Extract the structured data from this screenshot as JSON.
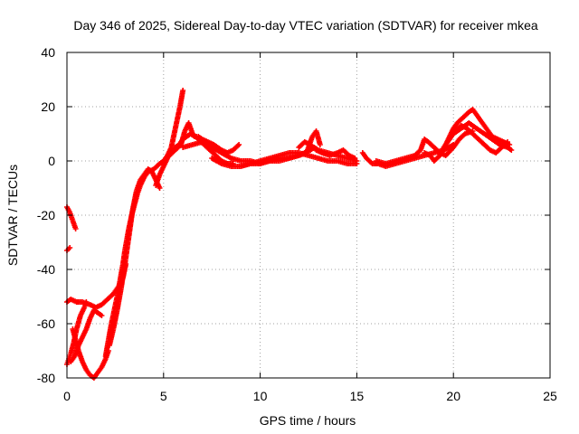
{
  "chart_data": {
    "type": "scatter",
    "title": "Day 346 of 2025, Sidereal Day-to-day VTEC variation (SDTVAR) for receiver mkea",
    "xlabel": "GPS time / hours",
    "ylabel": "SDTVAR / TECUs",
    "xlim": [
      0,
      25
    ],
    "ylim": [
      -80,
      40
    ],
    "xticks": [
      0,
      5,
      10,
      15,
      20,
      25
    ],
    "yticks": [
      -80,
      -60,
      -40,
      -20,
      0,
      20,
      40
    ],
    "grid": true,
    "legend": "none",
    "marker": "+",
    "color": "#ff0000",
    "series": [
      {
        "name": "trace-1",
        "points": [
          [
            0.0,
            -17
          ],
          [
            0.15,
            -19
          ],
          [
            0.3,
            -22
          ],
          [
            0.45,
            -25
          ]
        ]
      },
      {
        "name": "trace-2",
        "points": [
          [
            0.0,
            -33
          ],
          [
            0.15,
            -32
          ]
        ]
      },
      {
        "name": "trace-3",
        "points": [
          [
            0.0,
            -52
          ],
          [
            0.2,
            -51
          ],
          [
            0.5,
            -52
          ],
          [
            0.8,
            -52
          ],
          [
            1.2,
            -53
          ],
          [
            1.5,
            -54
          ],
          [
            1.8,
            -53
          ],
          [
            2.1,
            -51
          ],
          [
            2.4,
            -49
          ],
          [
            2.7,
            -46
          ],
          [
            2.9,
            -43
          ],
          [
            3.05,
            -38
          ]
        ]
      },
      {
        "name": "trace-4",
        "points": [
          [
            0.0,
            -75
          ],
          [
            0.1,
            -73
          ],
          [
            0.2,
            -71
          ],
          [
            0.35,
            -67
          ],
          [
            0.5,
            -62
          ],
          [
            0.7,
            -57
          ],
          [
            0.9,
            -54
          ],
          [
            1.0,
            -52
          ]
        ]
      },
      {
        "name": "trace-5",
        "points": [
          [
            0.3,
            -62
          ],
          [
            0.45,
            -66
          ],
          [
            0.6,
            -70
          ],
          [
            0.8,
            -74
          ],
          [
            1.0,
            -77
          ],
          [
            1.2,
            -79
          ],
          [
            1.4,
            -80
          ],
          [
            1.6,
            -78
          ],
          [
            1.8,
            -76
          ],
          [
            2.0,
            -73
          ],
          [
            2.15,
            -70
          ]
        ]
      },
      {
        "name": "trace-6",
        "points": [
          [
            0.2,
            -74
          ],
          [
            0.4,
            -72
          ],
          [
            0.6,
            -68
          ],
          [
            0.8,
            -65
          ],
          [
            1.0,
            -62
          ],
          [
            1.2,
            -58
          ],
          [
            1.4,
            -55
          ],
          [
            1.6,
            -56
          ],
          [
            1.8,
            -57
          ]
        ]
      },
      {
        "name": "trace-7",
        "points": [
          [
            2.0,
            -72
          ],
          [
            2.15,
            -66
          ],
          [
            2.3,
            -60
          ],
          [
            2.45,
            -55
          ],
          [
            2.6,
            -50
          ],
          [
            2.75,
            -44
          ],
          [
            2.9,
            -38
          ],
          [
            3.0,
            -33
          ],
          [
            3.1,
            -29
          ],
          [
            3.2,
            -25
          ],
          [
            3.35,
            -20
          ],
          [
            3.5,
            -16
          ],
          [
            3.65,
            -12
          ],
          [
            3.8,
            -9
          ],
          [
            4.0,
            -6
          ],
          [
            4.2,
            -4
          ],
          [
            4.5,
            -3
          ],
          [
            4.8,
            -1
          ],
          [
            5.0,
            0
          ],
          [
            5.2,
            2
          ],
          [
            5.4,
            5
          ],
          [
            5.55,
            10
          ],
          [
            5.7,
            15
          ],
          [
            5.85,
            20
          ],
          [
            6.0,
            26
          ]
        ]
      },
      {
        "name": "trace-8",
        "points": [
          [
            2.2,
            -68
          ],
          [
            2.4,
            -62
          ],
          [
            2.6,
            -55
          ],
          [
            2.8,
            -47
          ],
          [
            3.0,
            -38
          ],
          [
            3.2,
            -28
          ],
          [
            3.4,
            -18
          ],
          [
            3.6,
            -11
          ],
          [
            3.8,
            -7
          ],
          [
            4.0,
            -5
          ],
          [
            4.2,
            -3
          ],
          [
            4.4,
            -4
          ],
          [
            4.6,
            -7
          ],
          [
            4.8,
            -10
          ]
        ]
      },
      {
        "name": "trace-9",
        "points": [
          [
            4.6,
            -9
          ],
          [
            4.8,
            -5
          ],
          [
            5.0,
            -2
          ],
          [
            5.2,
            1
          ],
          [
            5.4,
            3
          ],
          [
            5.6,
            5
          ],
          [
            5.8,
            6
          ],
          [
            6.0,
            8
          ],
          [
            6.2,
            9
          ],
          [
            6.4,
            10
          ],
          [
            6.6,
            9
          ],
          [
            6.8,
            9
          ],
          [
            7.0,
            8
          ],
          [
            7.3,
            7
          ],
          [
            7.6,
            6
          ],
          [
            8.0,
            4
          ],
          [
            8.3,
            3
          ],
          [
            8.6,
            4
          ],
          [
            8.9,
            6
          ]
        ]
      },
      {
        "name": "trace-10",
        "points": [
          [
            5.0,
            0
          ],
          [
            5.3,
            2
          ],
          [
            5.6,
            4
          ],
          [
            5.9,
            6
          ],
          [
            6.1,
            11
          ],
          [
            6.3,
            14
          ],
          [
            6.5,
            10
          ],
          [
            6.8,
            8
          ],
          [
            7.1,
            6
          ],
          [
            7.4,
            4
          ],
          [
            7.7,
            2
          ],
          [
            8.0,
            0
          ],
          [
            8.3,
            -1
          ],
          [
            8.6,
            -1
          ]
        ]
      },
      {
        "name": "trace-11",
        "points": [
          [
            6.0,
            5
          ],
          [
            6.5,
            6
          ],
          [
            7.0,
            7
          ],
          [
            7.5,
            5
          ],
          [
            8.0,
            3
          ],
          [
            8.5,
            1
          ],
          [
            9.0,
            0
          ],
          [
            9.5,
            0
          ],
          [
            10.0,
            -1
          ],
          [
            10.5,
            0
          ],
          [
            11.0,
            0
          ],
          [
            11.5,
            1
          ],
          [
            12.0,
            2
          ],
          [
            12.3,
            3
          ],
          [
            12.6,
            4
          ],
          [
            12.8,
            5
          ],
          [
            13.0,
            4
          ],
          [
            13.5,
            3
          ],
          [
            14.0,
            2
          ],
          [
            14.5,
            1
          ],
          [
            15.0,
            0
          ]
        ]
      },
      {
        "name": "trace-12",
        "points": [
          [
            7.5,
            1
          ],
          [
            8.0,
            -1
          ],
          [
            8.5,
            -2
          ],
          [
            9.0,
            -2
          ],
          [
            9.5,
            -1
          ],
          [
            10.0,
            0
          ],
          [
            10.5,
            1
          ],
          [
            11.0,
            2
          ],
          [
            11.5,
            3
          ],
          [
            12.0,
            3
          ],
          [
            12.5,
            2
          ],
          [
            13.0,
            1
          ],
          [
            13.5,
            0
          ],
          [
            14.0,
            0
          ],
          [
            14.5,
            -1
          ],
          [
            15.0,
            -1
          ]
        ]
      },
      {
        "name": "trace-13",
        "points": [
          [
            9.0,
            -2
          ],
          [
            9.5,
            -1
          ],
          [
            10.0,
            -1
          ],
          [
            10.5,
            0
          ],
          [
            11.0,
            1
          ],
          [
            11.5,
            1
          ],
          [
            12.0,
            2
          ],
          [
            12.4,
            3
          ],
          [
            12.7,
            9
          ],
          [
            12.9,
            11
          ],
          [
            13.1,
            6
          ]
        ]
      },
      {
        "name": "trace-14",
        "points": [
          [
            12.0,
            5
          ],
          [
            12.3,
            7
          ],
          [
            12.6,
            6
          ],
          [
            12.9,
            4
          ],
          [
            13.2,
            3
          ],
          [
            13.6,
            2
          ],
          [
            14.0,
            3
          ],
          [
            14.3,
            4
          ],
          [
            14.6,
            2
          ],
          [
            14.9,
            1
          ]
        ]
      },
      {
        "name": "trace-15",
        "points": [
          [
            15.3,
            3
          ],
          [
            15.5,
            1
          ],
          [
            15.8,
            -1
          ],
          [
            16.1,
            -1
          ],
          [
            16.5,
            -2
          ],
          [
            17.0,
            -1
          ],
          [
            17.5,
            0
          ],
          [
            18.0,
            1
          ],
          [
            18.5,
            2
          ],
          [
            19.0,
            3
          ],
          [
            19.5,
            4
          ],
          [
            20.0,
            6
          ]
        ]
      },
      {
        "name": "trace-16",
        "points": [
          [
            16.0,
            0
          ],
          [
            16.5,
            -1
          ],
          [
            17.0,
            0
          ],
          [
            17.5,
            1
          ],
          [
            18.0,
            2
          ],
          [
            18.3,
            4
          ],
          [
            18.5,
            8
          ],
          [
            18.7,
            7
          ],
          [
            19.0,
            5
          ],
          [
            19.3,
            3
          ],
          [
            19.6,
            2
          ],
          [
            20.0,
            5
          ],
          [
            20.3,
            8
          ],
          [
            20.6,
            10
          ],
          [
            21.0,
            11
          ]
        ]
      },
      {
        "name": "trace-17",
        "points": [
          [
            18.5,
            3
          ],
          [
            18.8,
            2
          ],
          [
            19.0,
            0
          ],
          [
            19.3,
            2
          ],
          [
            19.6,
            6
          ],
          [
            19.8,
            9
          ],
          [
            20.0,
            12
          ],
          [
            20.2,
            14
          ],
          [
            20.5,
            16
          ],
          [
            20.8,
            18
          ],
          [
            21.0,
            19
          ],
          [
            21.2,
            17
          ],
          [
            21.5,
            14
          ],
          [
            21.8,
            11
          ],
          [
            22.0,
            9
          ],
          [
            22.3,
            8
          ],
          [
            22.6,
            7
          ],
          [
            22.9,
            6
          ]
        ]
      },
      {
        "name": "trace-18",
        "points": [
          [
            19.5,
            5
          ],
          [
            19.8,
            8
          ],
          [
            20.1,
            11
          ],
          [
            20.4,
            13
          ],
          [
            20.7,
            12
          ],
          [
            21.0,
            10
          ],
          [
            21.3,
            8
          ],
          [
            21.6,
            6
          ],
          [
            21.9,
            4
          ],
          [
            22.2,
            3
          ],
          [
            22.5,
            5
          ],
          [
            22.8,
            7
          ]
        ]
      },
      {
        "name": "trace-19",
        "points": [
          [
            20.0,
            10
          ],
          [
            20.4,
            12
          ],
          [
            20.8,
            14
          ],
          [
            21.2,
            12
          ],
          [
            21.6,
            10
          ],
          [
            22.0,
            8
          ],
          [
            22.4,
            6
          ],
          [
            22.8,
            5
          ],
          [
            23.0,
            4
          ]
        ]
      }
    ]
  }
}
